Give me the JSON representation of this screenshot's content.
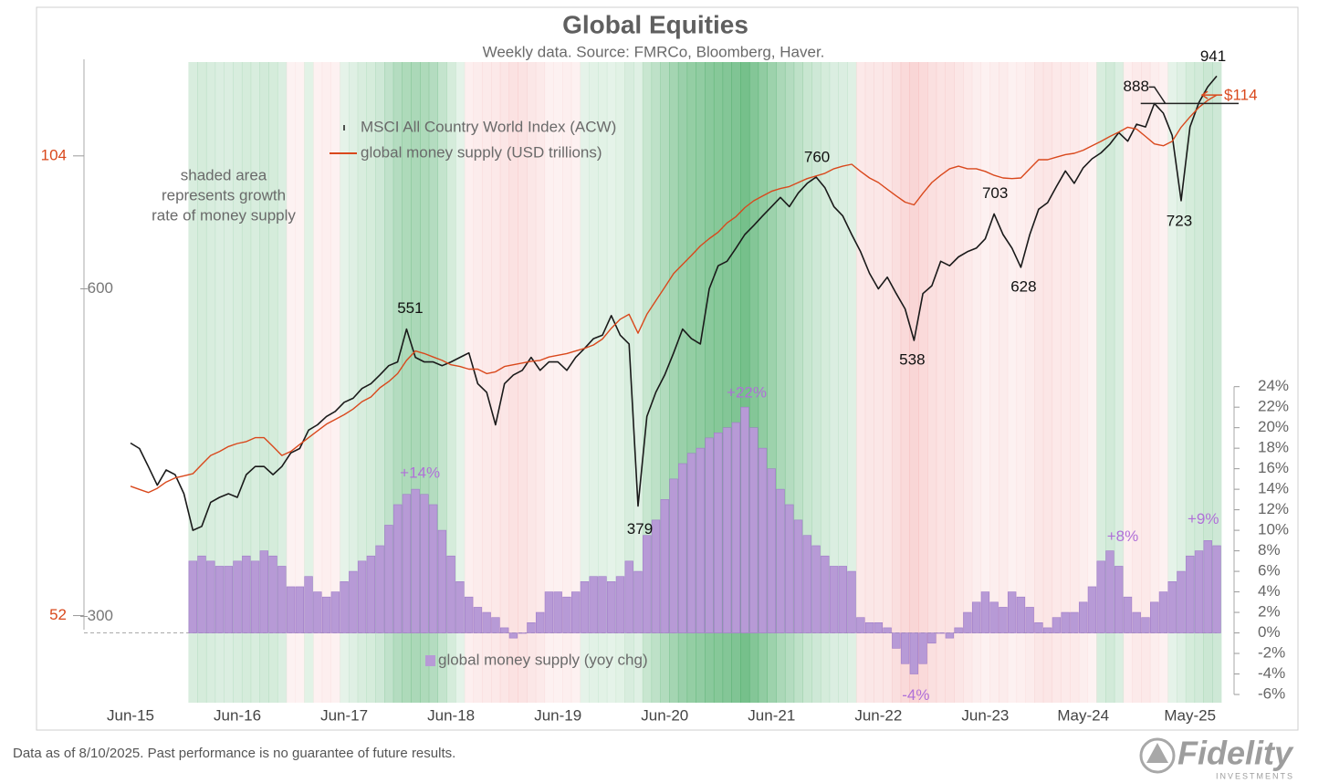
{
  "chart_data": {
    "type": "line",
    "title": "Global Equities",
    "subtitle": "Weekly data.  Source: FMRCo, Bloomberg, Haver.",
    "note": [
      "shaded area",
      "represents growth",
      "rate of money supply"
    ],
    "footer": "Data as of 8/10/2025. Past performance is no guarantee of future results.",
    "logo": {
      "name": "Fidelity",
      "sub": "INVESTMENTS"
    },
    "x": [
      "2015-06",
      "2015-07",
      "2015-08",
      "2015-09",
      "2015-10",
      "2015-11",
      "2015-12",
      "2016-01",
      "2016-02",
      "2016-03",
      "2016-04",
      "2016-05",
      "2016-06",
      "2016-07",
      "2016-08",
      "2016-09",
      "2016-10",
      "2016-11",
      "2016-12",
      "2017-01",
      "2017-02",
      "2017-03",
      "2017-04",
      "2017-05",
      "2017-06",
      "2017-07",
      "2017-08",
      "2017-09",
      "2017-10",
      "2017-11",
      "2017-12",
      "2018-01",
      "2018-02",
      "2018-03",
      "2018-04",
      "2018-05",
      "2018-06",
      "2018-07",
      "2018-08",
      "2018-09",
      "2018-10",
      "2018-11",
      "2018-12",
      "2019-01",
      "2019-02",
      "2019-03",
      "2019-04",
      "2019-05",
      "2019-06",
      "2019-07",
      "2019-08",
      "2019-09",
      "2019-10",
      "2019-11",
      "2019-12",
      "2020-01",
      "2020-02",
      "2020-03",
      "2020-04",
      "2020-05",
      "2020-06",
      "2020-07",
      "2020-08",
      "2020-09",
      "2020-10",
      "2020-11",
      "2020-12",
      "2021-01",
      "2021-02",
      "2021-03",
      "2021-04",
      "2021-05",
      "2021-06",
      "2021-07",
      "2021-08",
      "2021-09",
      "2021-10",
      "2021-11",
      "2021-12",
      "2022-01",
      "2022-02",
      "2022-03",
      "2022-04",
      "2022-05",
      "2022-06",
      "2022-07",
      "2022-08",
      "2022-09",
      "2022-10",
      "2022-11",
      "2022-12",
      "2023-01",
      "2023-02",
      "2023-03",
      "2023-04",
      "2023-05",
      "2023-06",
      "2023-07",
      "2023-08",
      "2023-09",
      "2023-10",
      "2023-11",
      "2023-12",
      "2024-01",
      "2024-02",
      "2024-03",
      "2024-04",
      "2024-05",
      "2024-06",
      "2024-07",
      "2024-08",
      "2024-09",
      "2024-10",
      "2024-11",
      "2024-12",
      "2025-01",
      "2025-02",
      "2025-03",
      "2025-04",
      "2025-05",
      "2025-06",
      "2025-07",
      "2025-08"
    ],
    "xlim": [
      "2015-06",
      "2025-08"
    ],
    "xticks": [
      {
        "value": "2015-06",
        "label": "Jun-15"
      },
      {
        "value": "2016-06",
        "label": "Jun-16"
      },
      {
        "value": "2017-06",
        "label": "Jun-17"
      },
      {
        "value": "2018-06",
        "label": "Jun-18"
      },
      {
        "value": "2019-06",
        "label": "Jun-19"
      },
      {
        "value": "2020-06",
        "label": "Jun-20"
      },
      {
        "value": "2021-06",
        "label": "Jun-21"
      },
      {
        "value": "2022-06",
        "label": "Jun-22"
      },
      {
        "value": "2023-06",
        "label": "Jun-23"
      },
      {
        "value": "2024-05",
        "label": "May-24"
      },
      {
        "value": "2025-05",
        "label": "May-25"
      }
    ],
    "yscale": "log",
    "ylim": [
      250,
      975
    ],
    "yticks": [
      300,
      600
    ],
    "y2scale": "log",
    "y2lim": [
      45.6,
      120.3
    ],
    "y2ticks": [
      52,
      104
    ],
    "y2color": "#d9481c",
    "y3lim": [
      -6.8,
      55.9
    ],
    "y3ticks": [
      {
        "value": -6,
        "label": "-6%"
      },
      {
        "value": -4,
        "label": "-4%"
      },
      {
        "value": -2,
        "label": "-2%"
      },
      {
        "value": 0,
        "label": "0%"
      },
      {
        "value": 2,
        "label": "2%"
      },
      {
        "value": 4,
        "label": "4%"
      },
      {
        "value": 6,
        "label": "6%"
      },
      {
        "value": 8,
        "label": "8%"
      },
      {
        "value": 10,
        "label": "10%"
      },
      {
        "value": 12,
        "label": "12%"
      },
      {
        "value": 14,
        "label": "14%"
      },
      {
        "value": 16,
        "label": "16%"
      },
      {
        "value": 18,
        "label": "18%"
      },
      {
        "value": 20,
        "label": "20%"
      },
      {
        "value": 22,
        "label": "22%"
      },
      {
        "value": 24,
        "label": "24%"
      }
    ],
    "grid": false,
    "series": [
      {
        "name": "MSCI All Country World Index (ACW)",
        "color": "#1a1a1a",
        "values": [
          433,
          428,
          412,
          396,
          409,
          405,
          389,
          360,
          363,
          382,
          386,
          389,
          386,
          405,
          412,
          412,
          405,
          412,
          424,
          428,
          445,
          450,
          458,
          463,
          472,
          476,
          486,
          491,
          500,
          510,
          514,
          551,
          519,
          514,
          514,
          510,
          514,
          519,
          524,
          491,
          482,
          450,
          491,
          500,
          505,
          519,
          505,
          514,
          514,
          505,
          519,
          529,
          540,
          544,
          567,
          544,
          534,
          379,
          458,
          482,
          500,
          524,
          551,
          540,
          534,
          600,
          630,
          636,
          654,
          673,
          686,
          700,
          714,
          728,
          714,
          735,
          750,
          760,
          743,
          714,
          700,
          673,
          649,
          620,
          600,
          615,
          594,
          575,
          538,
          594,
          604,
          636,
          630,
          642,
          649,
          654,
          667,
          703,
          673,
          654,
          628,
          673,
          710,
          720,
          745,
          770,
          750,
          775,
          790,
          800,
          815,
          835,
          820,
          850,
          845,
          888,
          870,
          830,
          723,
          845,
          890,
          920,
          941
        ]
      },
      {
        "name": "global money supply (USD trillions)",
        "color": "#d9481c",
        "axis": "y2",
        "values": [
          63.2,
          62.9,
          62.6,
          63.0,
          63.6,
          64.0,
          64.2,
          64.4,
          65.3,
          66.2,
          66.6,
          67.1,
          67.4,
          67.6,
          68.0,
          68.0,
          67.1,
          66.2,
          66.6,
          67.3,
          68.0,
          68.7,
          69.4,
          69.9,
          70.4,
          71.0,
          71.8,
          72.3,
          73.3,
          74.0,
          74.9,
          76.4,
          77.5,
          77.2,
          76.8,
          76.4,
          75.9,
          75.7,
          75.4,
          75.4,
          74.9,
          75.1,
          75.7,
          75.9,
          76.1,
          76.3,
          76.4,
          76.8,
          77.0,
          77.2,
          77.5,
          77.8,
          78.2,
          78.9,
          80.2,
          81.3,
          81.9,
          79.6,
          81.9,
          83.6,
          85.3,
          87.1,
          88.3,
          89.5,
          90.8,
          91.8,
          92.7,
          94.0,
          94.9,
          96.2,
          97.2,
          97.9,
          98.6,
          99.0,
          99.3,
          99.9,
          100.5,
          100.9,
          101.3,
          102.0,
          102.4,
          102.7,
          101.6,
          100.6,
          99.9,
          98.9,
          97.9,
          97.0,
          96.6,
          98.3,
          99.9,
          101.0,
          102.0,
          102.4,
          102.0,
          102.0,
          101.6,
          101.0,
          100.6,
          100.5,
          100.6,
          102.0,
          103.4,
          103.4,
          103.8,
          104.2,
          104.4,
          104.9,
          105.6,
          106.3,
          107.1,
          107.8,
          108.6,
          108.3,
          107.1,
          105.9,
          105.6,
          106.3,
          108.6,
          110.3,
          111.9,
          113.1,
          114
        ]
      },
      {
        "name": "global money supply (yoy chg)",
        "color": "#b79ad6",
        "axis": "y3",
        "type": "bar",
        "values": [
          null,
          null,
          null,
          null,
          null,
          null,
          null,
          7.0,
          7.5,
          7.0,
          6.5,
          6.5,
          7.0,
          7.5,
          7.0,
          8.0,
          7.5,
          6.5,
          4.5,
          4.5,
          5.5,
          4.0,
          3.5,
          4.0,
          5.0,
          6.0,
          7.0,
          7.5,
          8.5,
          10.5,
          12.5,
          13.5,
          14.0,
          13.5,
          12.5,
          10.0,
          7.5,
          5.0,
          3.5,
          2.5,
          2.0,
          1.5,
          0.5,
          -0.5,
          0.0,
          1.0,
          2.0,
          4.0,
          4.0,
          3.5,
          4.0,
          5.0,
          5.5,
          5.5,
          5.0,
          5.5,
          7.0,
          6.0,
          9.5,
          11.0,
          13.0,
          15.0,
          16.5,
          17.5,
          18.0,
          19.0,
          19.5,
          20.0,
          20.5,
          22.0,
          20.0,
          18.0,
          16.0,
          14.0,
          12.5,
          11.0,
          9.5,
          8.5,
          7.5,
          6.5,
          6.5,
          6.0,
          1.5,
          1.0,
          1.0,
          0.5,
          -1.5,
          -3.0,
          -4.0,
          -3.0,
          -1.0,
          0.0,
          -0.5,
          0.5,
          2.0,
          3.0,
          4.0,
          3.0,
          2.5,
          4.0,
          3.5,
          2.5,
          1.0,
          0.5,
          1.5,
          2.0,
          2.0,
          3.0,
          4.5,
          7.0,
          8.0,
          6.5,
          3.5,
          2.0,
          1.5,
          3.0,
          4.0,
          5.0,
          6.0,
          7.5,
          8.0,
          9.0,
          8.5
        ]
      }
    ],
    "annotations": [
      {
        "x": "2018-01",
        "y": 551,
        "label": "551"
      },
      {
        "x": "2021-11",
        "y": 760,
        "label": "760"
      },
      {
        "x": "2020-03",
        "y": 379,
        "label": "379"
      },
      {
        "x": "2022-10",
        "y": 538,
        "label": "538"
      },
      {
        "x": "2023-07",
        "y": 703,
        "label": "703"
      },
      {
        "x": "2023-10",
        "y": 628,
        "label": "628"
      },
      {
        "x": "2025-01",
        "y": 888,
        "label": "888"
      },
      {
        "x": "2025-08",
        "y": 941,
        "label": "941"
      },
      {
        "x": "2025-04",
        "y": 723,
        "label": "723"
      },
      {
        "x": "2018-02",
        "y": 14,
        "label": "+14%",
        "axis": "y3"
      },
      {
        "x": "2021-03",
        "y": 22,
        "label": "+22%",
        "axis": "y3"
      },
      {
        "x": "2024-08",
        "y": 8,
        "label": "+8%",
        "axis": "y3"
      },
      {
        "x": "2025-07",
        "y": 9,
        "label": "+9%",
        "axis": "y3"
      },
      {
        "x": "2022-10",
        "y": -4,
        "label": "-4%",
        "axis": "y3"
      },
      {
        "x": "2025-08",
        "y": 114,
        "label": "$114",
        "axis": "y2"
      }
    ]
  }
}
